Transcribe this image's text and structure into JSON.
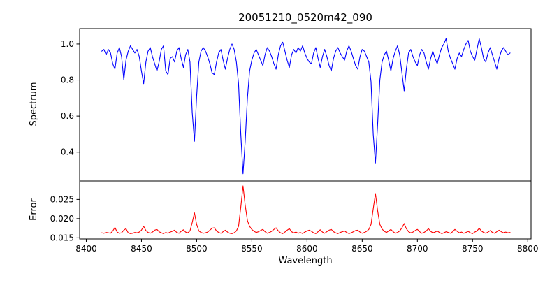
{
  "figure": {
    "background": "#ffffff",
    "spine_color": "#000000"
  },
  "chart_data": {
    "type": "line",
    "title": "20051210_0520m42_090",
    "xlabel": "Wavelength",
    "xlim": [
      8394,
      8803
    ],
    "xticks": [
      8400,
      8450,
      8500,
      8550,
      8600,
      8650,
      8700,
      8750,
      8800
    ],
    "xtick_labels": [
      "8400",
      "8450",
      "8500",
      "8550",
      "8600",
      "8650",
      "8700",
      "8750",
      "8800"
    ],
    "x_start": 8414,
    "x_step": 2,
    "grid": false,
    "legend": "none",
    "absorption_line_centers": [
      8498,
      8542,
      8662
    ],
    "panels": [
      {
        "name": "spectrum",
        "ylabel": "Spectrum",
        "color": "#0000ff",
        "ylim": [
          0.24,
          1.085
        ],
        "yticks": [
          0.4,
          0.6,
          0.8,
          1.0
        ],
        "ytick_labels": [
          "0.4",
          "0.6",
          "0.8",
          "1.0"
        ],
        "values": [
          0.96,
          0.97,
          0.94,
          0.97,
          0.95,
          0.89,
          0.86,
          0.95,
          0.98,
          0.93,
          0.8,
          0.91,
          0.96,
          0.99,
          0.97,
          0.95,
          0.97,
          0.93,
          0.85,
          0.78,
          0.9,
          0.96,
          0.98,
          0.93,
          0.89,
          0.85,
          0.9,
          0.97,
          0.99,
          0.85,
          0.83,
          0.92,
          0.93,
          0.9,
          0.96,
          0.98,
          0.92,
          0.87,
          0.94,
          0.97,
          0.9,
          0.62,
          0.46,
          0.71,
          0.9,
          0.96,
          0.98,
          0.96,
          0.93,
          0.89,
          0.84,
          0.83,
          0.9,
          0.95,
          0.97,
          0.91,
          0.86,
          0.92,
          0.97,
          1.0,
          0.97,
          0.9,
          0.78,
          0.5,
          0.28,
          0.46,
          0.7,
          0.85,
          0.91,
          0.95,
          0.97,
          0.94,
          0.91,
          0.88,
          0.94,
          0.98,
          0.96,
          0.93,
          0.89,
          0.86,
          0.94,
          0.99,
          1.01,
          0.96,
          0.91,
          0.87,
          0.94,
          0.97,
          0.95,
          0.98,
          0.96,
          0.99,
          0.95,
          0.92,
          0.9,
          0.89,
          0.95,
          0.98,
          0.92,
          0.87,
          0.93,
          0.97,
          0.93,
          0.88,
          0.85,
          0.92,
          0.96,
          0.98,
          0.95,
          0.93,
          0.91,
          0.96,
          0.99,
          0.96,
          0.92,
          0.88,
          0.86,
          0.93,
          0.97,
          0.96,
          0.93,
          0.9,
          0.79,
          0.5,
          0.34,
          0.56,
          0.8,
          0.9,
          0.94,
          0.96,
          0.91,
          0.85,
          0.92,
          0.96,
          0.99,
          0.94,
          0.84,
          0.74,
          0.86,
          0.95,
          0.97,
          0.93,
          0.9,
          0.88,
          0.94,
          0.97,
          0.95,
          0.9,
          0.86,
          0.92,
          0.96,
          0.92,
          0.89,
          0.94,
          0.98,
          1.0,
          1.03,
          0.96,
          0.92,
          0.89,
          0.86,
          0.92,
          0.95,
          0.93,
          0.97,
          1.0,
          1.02,
          0.96,
          0.93,
          0.91,
          0.97,
          1.03,
          0.98,
          0.92,
          0.9,
          0.95,
          0.98,
          0.94,
          0.9,
          0.86,
          0.92,
          0.96,
          0.98,
          0.96,
          0.94,
          0.95
        ]
      },
      {
        "name": "error",
        "ylabel": "Error",
        "color": "#ff0000",
        "ylim": [
          0.0147,
          0.0298
        ],
        "yticks": [
          0.015,
          0.02,
          0.025
        ],
        "ytick_labels": [
          "0.015",
          "0.020",
          "0.025"
        ],
        "values": [
          0.0163,
          0.0162,
          0.0164,
          0.0163,
          0.0162,
          0.0168,
          0.0177,
          0.0165,
          0.0162,
          0.0163,
          0.017,
          0.0174,
          0.0163,
          0.0161,
          0.0162,
          0.0164,
          0.0163,
          0.0165,
          0.017,
          0.018,
          0.0169,
          0.0164,
          0.0162,
          0.0165,
          0.017,
          0.0172,
          0.0166,
          0.0163,
          0.0161,
          0.0164,
          0.0162,
          0.0165,
          0.0167,
          0.017,
          0.0164,
          0.0162,
          0.0167,
          0.0171,
          0.0165,
          0.0163,
          0.0168,
          0.019,
          0.0215,
          0.0185,
          0.0168,
          0.0164,
          0.0162,
          0.0163,
          0.0165,
          0.017,
          0.0175,
          0.0176,
          0.0168,
          0.0164,
          0.0162,
          0.0166,
          0.017,
          0.0165,
          0.0162,
          0.0161,
          0.0163,
          0.0168,
          0.018,
          0.023,
          0.0285,
          0.0235,
          0.0195,
          0.018,
          0.0172,
          0.0167,
          0.0164,
          0.0166,
          0.0169,
          0.0172,
          0.0166,
          0.0162,
          0.0164,
          0.0167,
          0.0172,
          0.0176,
          0.0168,
          0.0163,
          0.0161,
          0.0165,
          0.017,
          0.0174,
          0.0166,
          0.0163,
          0.0165,
          0.0162,
          0.0164,
          0.0161,
          0.0165,
          0.0168,
          0.017,
          0.0167,
          0.0163,
          0.0161,
          0.0166,
          0.0171,
          0.0165,
          0.0162,
          0.0166,
          0.017,
          0.0172,
          0.0166,
          0.0163,
          0.0161,
          0.0164,
          0.0166,
          0.0168,
          0.0164,
          0.0161,
          0.0163,
          0.0166,
          0.0169,
          0.017,
          0.0165,
          0.0162,
          0.0164,
          0.0167,
          0.0172,
          0.0185,
          0.0225,
          0.0265,
          0.022,
          0.0185,
          0.0173,
          0.0167,
          0.0164,
          0.0168,
          0.0172,
          0.0166,
          0.0162,
          0.0164,
          0.0168,
          0.0176,
          0.0187,
          0.0174,
          0.0166,
          0.0163,
          0.0165,
          0.0169,
          0.0172,
          0.0166,
          0.0162,
          0.0164,
          0.0168,
          0.0174,
          0.0167,
          0.0163,
          0.0165,
          0.0168,
          0.0164,
          0.0161,
          0.0163,
          0.0166,
          0.0164,
          0.0162,
          0.0166,
          0.0172,
          0.0167,
          0.0163,
          0.0165,
          0.0162,
          0.0164,
          0.0167,
          0.0163,
          0.0161,
          0.0165,
          0.0168,
          0.0175,
          0.0168,
          0.0164,
          0.0162,
          0.0165,
          0.0169,
          0.0164,
          0.0162,
          0.0166,
          0.017,
          0.0166,
          0.0163,
          0.0165,
          0.0163,
          0.0164
        ]
      }
    ]
  }
}
